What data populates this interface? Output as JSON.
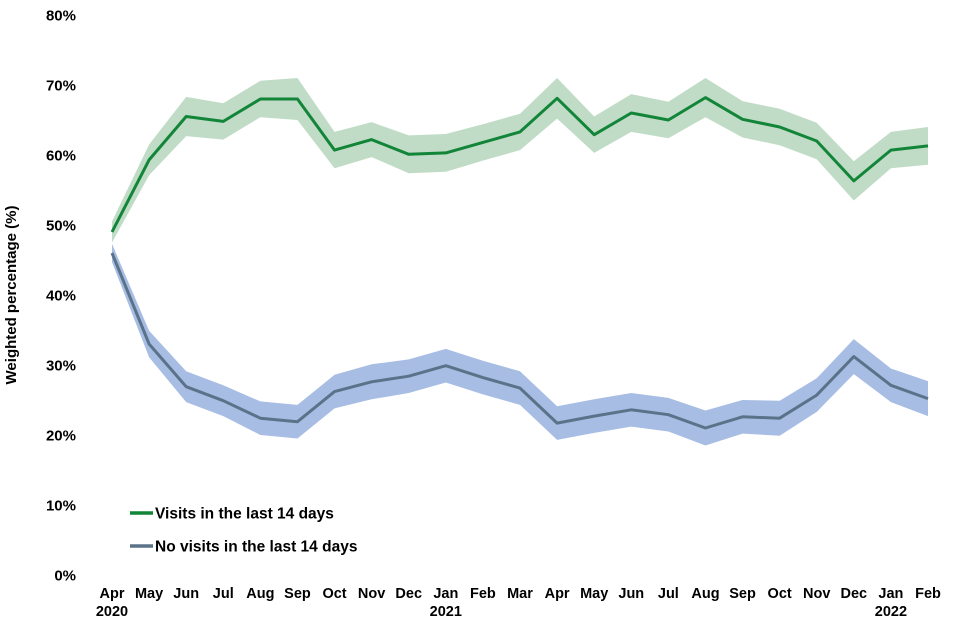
{
  "chart_data": {
    "type": "line",
    "title": "",
    "xlabel": "",
    "ylabel": "Weighted percentage (%)",
    "ylim": [
      0,
      80
    ],
    "yticks": [
      0,
      10,
      20,
      30,
      40,
      50,
      60,
      70,
      80
    ],
    "ytick_suffix": "%",
    "grid": false,
    "legend_position": "inside-bottom-left",
    "x_labels": [
      "Apr",
      "May",
      "Jun",
      "Jul",
      "Aug",
      "Sep",
      "Oct",
      "Nov",
      "Dec",
      "Jan",
      "Feb",
      "Mar",
      "Apr",
      "May",
      "Jun",
      "Jul",
      "Aug",
      "Sep",
      "Oct",
      "Nov",
      "Dec",
      "Jan",
      "Feb"
    ],
    "year_labels": [
      {
        "index": 0,
        "text": "2020"
      },
      {
        "index": 9,
        "text": "2021"
      },
      {
        "index": 21,
        "text": "2022"
      }
    ],
    "series": [
      {
        "name": "Visits in the last 14 days",
        "color": "#128539",
        "band_color": "#c0dcc6",
        "values": [
          49.0,
          59.3,
          65.5,
          64.8,
          68.0,
          68.0,
          60.7,
          62.2,
          60.1,
          60.3,
          61.8,
          63.3,
          68.1,
          62.9,
          66.0,
          65.0,
          68.2,
          65.1,
          64.0,
          62.0,
          56.3,
          60.7,
          61.3
        ],
        "band_half_width": [
          1.5,
          2.2,
          2.8,
          2.6,
          2.6,
          3.0,
          2.6,
          2.5,
          2.7,
          2.7,
          2.6,
          2.6,
          2.9,
          2.6,
          2.7,
          2.6,
          2.8,
          2.6,
          2.6,
          2.6,
          2.8,
          2.6,
          2.7
        ]
      },
      {
        "name": "No visits in the last 14 days",
        "color": "#5b7389",
        "band_color": "#a8bde4",
        "values": [
          46.0,
          33.0,
          26.9,
          24.9,
          22.4,
          21.9,
          26.2,
          27.6,
          28.4,
          29.9,
          28.2,
          26.7,
          21.7,
          22.7,
          23.6,
          22.9,
          21.0,
          22.6,
          22.4,
          25.7,
          31.2,
          27.1,
          25.2
        ],
        "band_half_width": [
          1.3,
          1.9,
          2.2,
          2.2,
          2.4,
          2.4,
          2.4,
          2.5,
          2.4,
          2.4,
          2.4,
          2.4,
          2.4,
          2.4,
          2.4,
          2.4,
          2.5,
          2.4,
          2.5,
          2.4,
          2.5,
          2.4,
          2.5
        ]
      }
    ]
  }
}
